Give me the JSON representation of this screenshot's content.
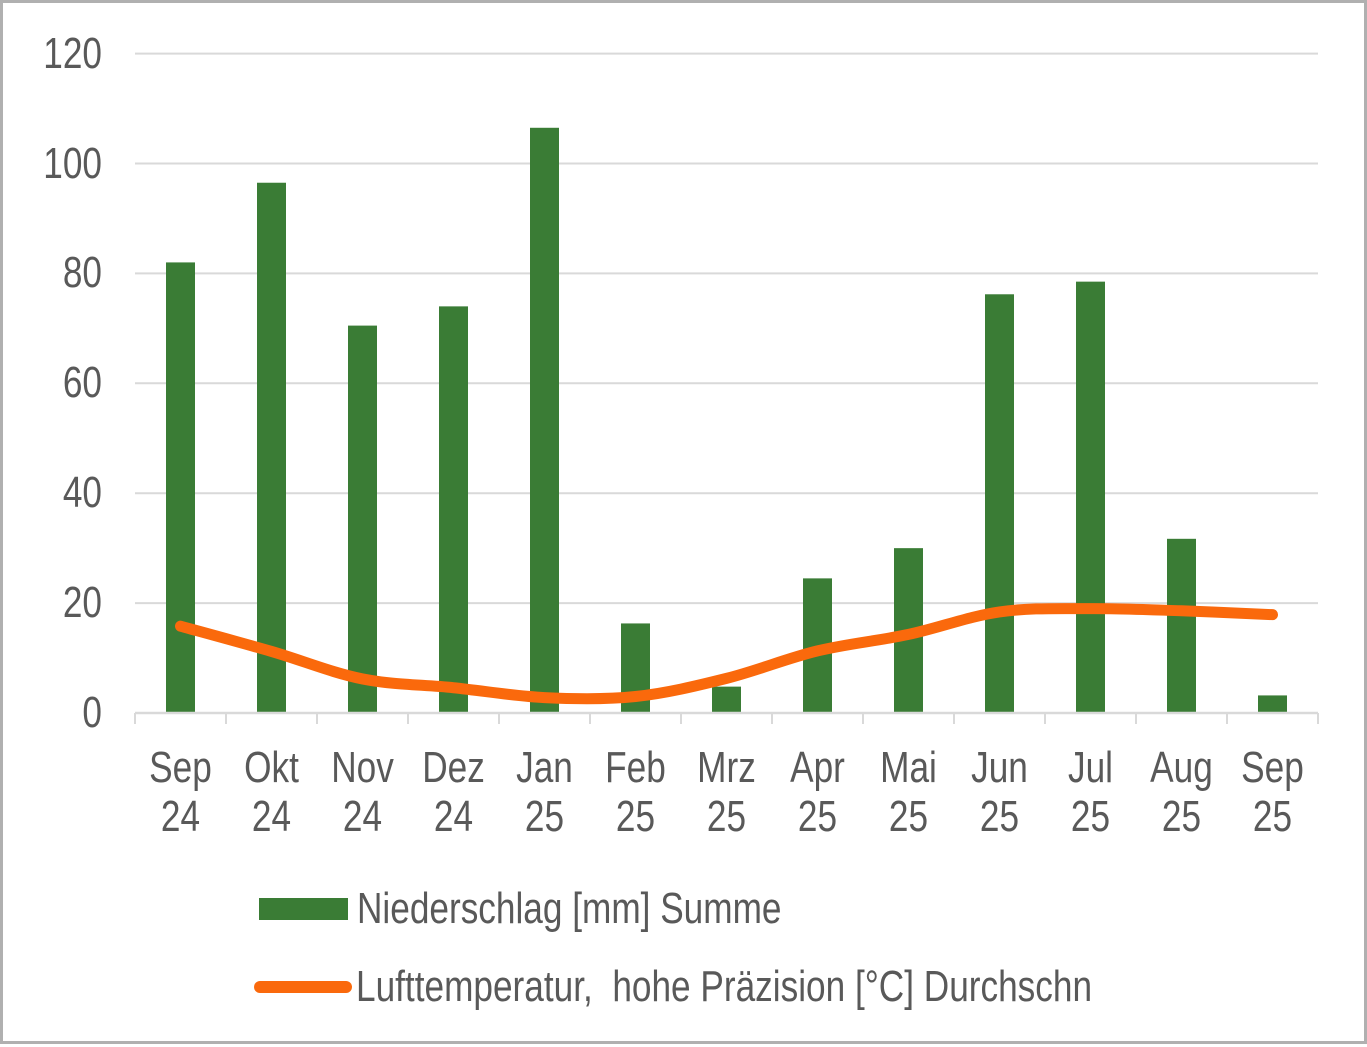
{
  "chart": {
    "background": "#FFFFFF",
    "frame_border_color": "#B0B0B0",
    "text_color": "#595959",
    "gridline_color": "#D9D9D9",
    "axis_color": "#D9D9D9"
  },
  "chart_data": {
    "type": "combo",
    "categories": [
      "Sep 24",
      "Okt 24",
      "Nov 24",
      "Dez 24",
      "Jan 25",
      "Feb 25",
      "Mrz 25",
      "Apr 25",
      "Mai 25",
      "Jun 25",
      "Jul 25",
      "Aug 25",
      "Sep 25"
    ],
    "series": [
      {
        "name": "Niederschlag [mm] Summe",
        "type": "bar",
        "color": "#3A7C35",
        "values": [
          82,
          96.5,
          70.5,
          74,
          106.5,
          16.3,
          4.8,
          24.5,
          30,
          76.2,
          78.5,
          31.7,
          3.2
        ]
      },
      {
        "name": "Lufttemperatur,  hohe Präzision [°C] Durchschn",
        "type": "line",
        "smooth": true,
        "color": "#FA690C",
        "values": [
          15.8,
          11.2,
          6.2,
          4.6,
          2.8,
          3,
          6.3,
          11.3,
          14.3,
          18.4,
          19,
          18.6,
          17.9
        ]
      }
    ],
    "title": "",
    "xlabel": "",
    "ylabel": "",
    "ylim": [
      0,
      120
    ],
    "yticks": [
      0,
      20,
      40,
      60,
      80,
      100,
      120
    ],
    "grid": true,
    "legend_position": "bottom-left"
  }
}
